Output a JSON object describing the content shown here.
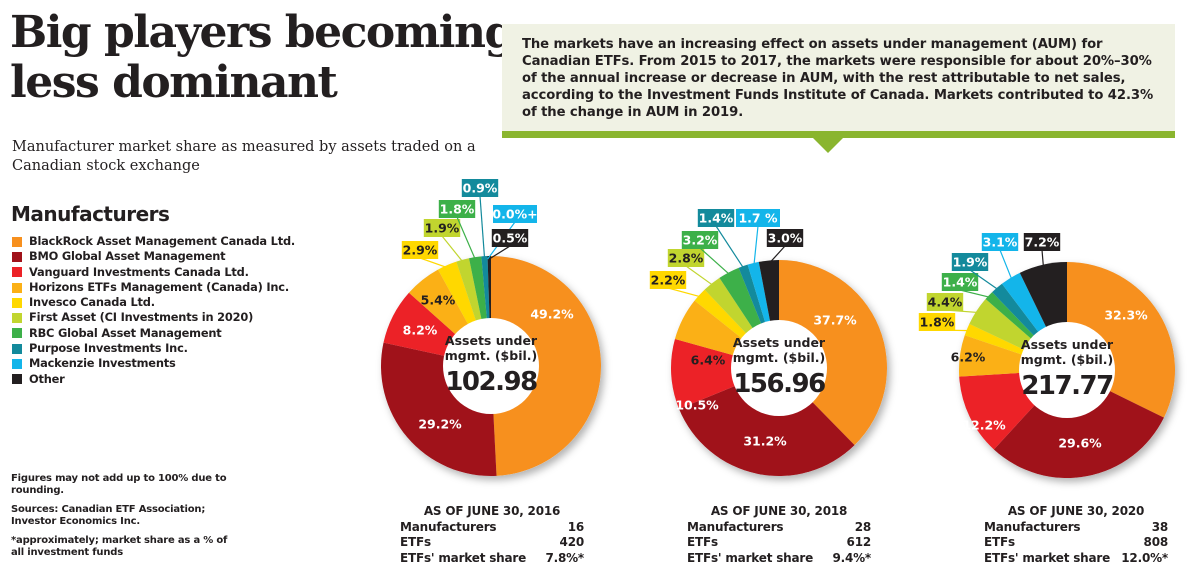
{
  "header": {
    "title_line1": "Big players becoming",
    "title_line2": "less dominant",
    "subtitle": "Manufacturer market share as measured by assets traded on a Canadian stock exchange"
  },
  "callout": {
    "text": "The markets have an increasing effect on assets under management (AUM) for Canadian ETFs. From 2015 to 2017, the markets were responsible for about 20%–30% of the annual increase or decrease in AUM, with the rest attributable to net sales, according to the Investment Funds Institute of Canada. Markets contributed to 42.3% of the change in AUM in 2019.",
    "accent": "#8ab52e",
    "background": "#f0f2e4"
  },
  "legend": {
    "title": "Manufacturers",
    "items": [
      {
        "label": "BlackRock Asset Management Canada Ltd.",
        "color": "#f7901e"
      },
      {
        "label": "BMO Global Asset Management",
        "color": "#a0121a"
      },
      {
        "label": "Vanguard Investments Canada Ltd.",
        "color": "#ec2227"
      },
      {
        "label": "Horizons ETFs Management (Canada) Inc.",
        "color": "#fbb016"
      },
      {
        "label": "Invesco Canada Ltd.",
        "color": "#ffd800"
      },
      {
        "label": "First Asset (CI Investments in 2020)",
        "color": "#c1d52f"
      },
      {
        "label": "RBC Global Asset Management",
        "color": "#3db049"
      },
      {
        "label": "Purpose Investments Inc.",
        "color": "#138a9c"
      },
      {
        "label": "Mackenzie Investments",
        "color": "#13b5ea"
      },
      {
        "label": "Other",
        "color": "#231f20"
      }
    ]
  },
  "notes": {
    "rounding": "Figures may not add up to 100% due to rounding.",
    "sources": "Sources: Canadian ETF Association; Investor Economics Inc.",
    "footnote": "*approximately; market share as a % of all investment funds"
  },
  "chart_data": [
    {
      "type": "pie",
      "title": "AS OF JUNE 30, 2016",
      "center_label": "Assets under mgmt. ($bil.)",
      "center_line1": "Assets under",
      "center_line2": "mgmt. ($bil.)",
      "total": "102.98",
      "values": [
        49.2,
        29.2,
        8.2,
        5.4,
        2.9,
        1.9,
        1.8,
        0.9,
        0.0,
        0.5
      ],
      "labels": [
        "49.2%",
        "29.2%",
        "8.2%",
        "5.4%",
        "2.9%",
        "1.9%",
        "1.8%",
        "0.9%",
        "0.0%+",
        "0.5%"
      ],
      "stats": [
        {
          "label": "Manufacturers",
          "value": "16"
        },
        {
          "label": "ETFs",
          "value": "420"
        },
        {
          "label": "ETFs' market share",
          "value": "7.8%*"
        }
      ]
    },
    {
      "type": "pie",
      "title": "AS OF JUNE 30, 2018",
      "center_line1": "Assets under",
      "center_line2": "mgmt. ($bil.)",
      "total": "156.96",
      "values": [
        37.7,
        31.2,
        10.5,
        6.4,
        2.2,
        2.8,
        3.2,
        1.4,
        1.7,
        3.0
      ],
      "labels": [
        "37.7%",
        "31.2%",
        "10.5%",
        "6.4%",
        "2.2%",
        "2.8%",
        "3.2%",
        "1.4%",
        "1.7 %",
        "3.0%"
      ],
      "stats": [
        {
          "label": "Manufacturers",
          "value": "28"
        },
        {
          "label": "ETFs",
          "value": "612"
        },
        {
          "label": "ETFs' market share",
          "value": "9.4%*"
        }
      ]
    },
    {
      "type": "pie",
      "title": "AS OF JUNE 30, 2020",
      "center_line1": "Assets under",
      "center_line2": "mgmt. ($bil.)",
      "total": "217.77",
      "values": [
        32.3,
        29.6,
        12.2,
        6.2,
        1.8,
        4.4,
        1.4,
        1.9,
        3.1,
        7.2
      ],
      "labels": [
        "32.3%",
        "29.6%",
        "12.2%",
        "6.2%",
        "1.8%",
        "4.4%",
        "1.4%",
        "1.9%",
        "3.1%",
        "7.2%"
      ],
      "stats": [
        {
          "label": "Manufacturers",
          "value": "38"
        },
        {
          "label": "ETFs",
          "value": "808"
        },
        {
          "label": "ETFs' market share",
          "value": "12.0%*"
        }
      ]
    }
  ]
}
